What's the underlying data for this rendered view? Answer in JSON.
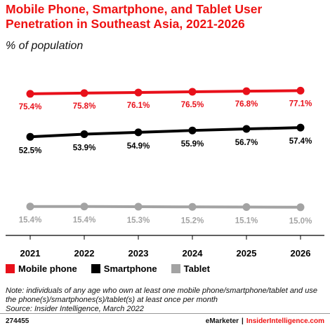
{
  "header": {
    "title": "Mobile Phone, Smartphone, and Tablet User Penetration in Southeast Asia, 2021-2026",
    "subtitle": "% of population"
  },
  "chart_data": {
    "type": "line",
    "x": [
      "2021",
      "2022",
      "2023",
      "2024",
      "2025",
      "2026"
    ],
    "series": [
      {
        "name": "Mobile phone",
        "color": "#e8101a",
        "values": [
          75.4,
          75.8,
          76.1,
          76.5,
          76.8,
          77.1
        ],
        "labels": [
          "75.4%",
          "75.8%",
          "76.1%",
          "76.5%",
          "76.8%",
          "77.1%"
        ]
      },
      {
        "name": "Smartphone",
        "color": "#000000",
        "values": [
          52.5,
          53.9,
          54.9,
          55.9,
          56.7,
          57.4
        ],
        "labels": [
          "52.5%",
          "53.9%",
          "54.9%",
          "55.9%",
          "56.7%",
          "57.4%"
        ]
      },
      {
        "name": "Tablet",
        "color": "#a3a3a3",
        "values": [
          15.4,
          15.4,
          15.3,
          15.2,
          15.1,
          15.0
        ],
        "labels": [
          "15.4%",
          "15.4%",
          "15.3%",
          "15.2%",
          "15.1%",
          "15.0%"
        ]
      }
    ],
    "ylim": [
      0,
      100
    ],
    "grid": false,
    "legend_position": "bottom-left"
  },
  "footer": {
    "note": "Note: individuals of any age who own at least one mobile phone/smartphone/tablet and use the phone(s)/smartphones(s)/tablet(s) at least once per month",
    "source": "Source: Insider Intelligence, March 2022",
    "chart_id": "274455",
    "brand": "eMarketer",
    "separator": "|",
    "site": "InsiderIntelligence.com"
  }
}
